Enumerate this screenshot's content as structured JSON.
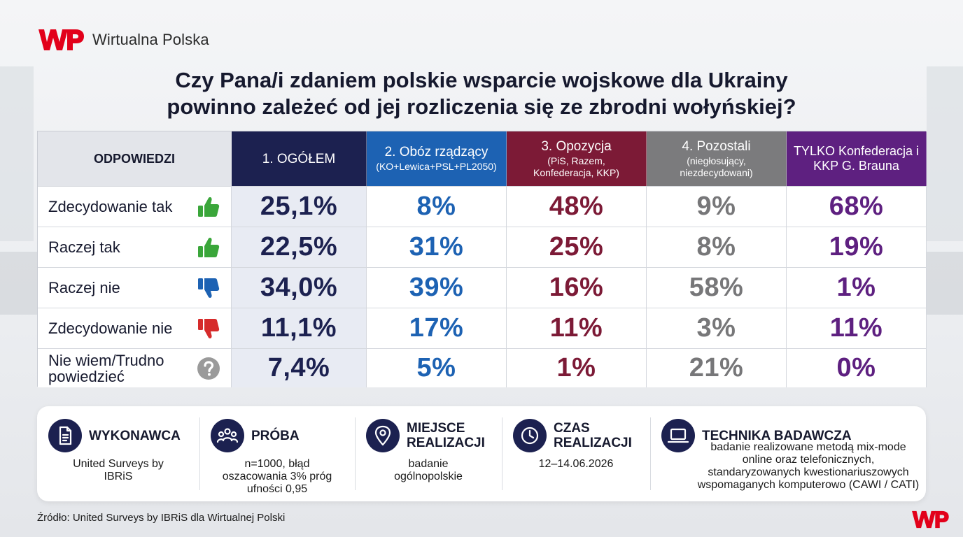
{
  "brand": {
    "name": "Wirtualna Polska",
    "logo_icon": "wp-logo-icon",
    "accent": "#e2001a"
  },
  "title": {
    "line1": "Czy Pana/i zdaniem polskie wsparcie wojskowe dla Ukrainy",
    "line2": "powinno zależeć od jej rozliczenia się ze zbrodni wołyńskiej?"
  },
  "chart_data": {
    "type": "table",
    "columns": [
      {
        "key": "answers",
        "label": "ODPOWIEDZI",
        "sub": ""
      },
      {
        "key": "c0",
        "label": "1. OGÓŁEM",
        "sub": "",
        "color": "#1c2150"
      },
      {
        "key": "c1",
        "label": "2. Obóz rządzący",
        "sub": "(KO+Lewica+PSL+PL2050)",
        "color": "#1d62b3"
      },
      {
        "key": "c2",
        "label": "3. Opozycja",
        "sub": "(PiS, Razem, Konfederacja, KKP)",
        "color": "#7c1a36"
      },
      {
        "key": "c3",
        "label": "4. Pozostali",
        "sub": "(niegłosujący, niezdecydowani)",
        "color": "#7b7b7d"
      },
      {
        "key": "c4",
        "label": "TYLKO Konfederacja i KKP G. Brauna",
        "sub": "",
        "color": "#5e2080"
      }
    ],
    "rows": [
      {
        "label": "Zdecydowanie tak",
        "icon": "thumbs-up-icon",
        "icon_color": "#3aa63a",
        "values": [
          "25,1%",
          "8%",
          "48%",
          "9%",
          "68%"
        ]
      },
      {
        "label": "Raczej tak",
        "icon": "thumbs-up-icon",
        "icon_color": "#3aa63a",
        "values": [
          "22,5%",
          "31%",
          "25%",
          "8%",
          "19%"
        ]
      },
      {
        "label": "Raczej nie",
        "icon": "thumbs-down-icon",
        "icon_color": "#1d62b3",
        "values": [
          "34,0%",
          "39%",
          "16%",
          "58%",
          "1%"
        ]
      },
      {
        "label": "Zdecydowanie nie",
        "icon": "thumbs-down-icon",
        "icon_color": "#d62b2b",
        "values": [
          "11,1%",
          "17%",
          "11%",
          "3%",
          "11%"
        ]
      },
      {
        "label": "Nie wiem/Trudno powiedzieć",
        "icon": "question-icon",
        "icon_color": "#9a9a9a",
        "values": [
          "7,4%",
          "5%",
          "1%",
          "21%",
          "0%"
        ]
      }
    ]
  },
  "info": [
    {
      "icon": "document-icon",
      "title": "WYKONAWCA",
      "text": "United Surveys by IBRiS"
    },
    {
      "icon": "people-icon",
      "title": "PRÓBA",
      "text": "n=1000, błąd oszacowania 3% próg ufności 0,95"
    },
    {
      "icon": "location-pin-icon",
      "title": "MIEJSCE REALIZACJI",
      "text": "badanie ogólnopolskie"
    },
    {
      "icon": "clock-icon",
      "title": "CZAS REALIZACJI",
      "text": "12–14.06.2026"
    },
    {
      "icon": "laptop-icon",
      "title": "TECHNIKA BADAWCZA",
      "text": "badanie realizowane metodą mix-mode online oraz telefonicznych, standaryzowanych kwestionariuszowych wspomaganych komputerowo (CAWI / CATI)"
    }
  ],
  "source": "Źródło: United Surveys by IBRiS dla Wirtualnej Polski"
}
